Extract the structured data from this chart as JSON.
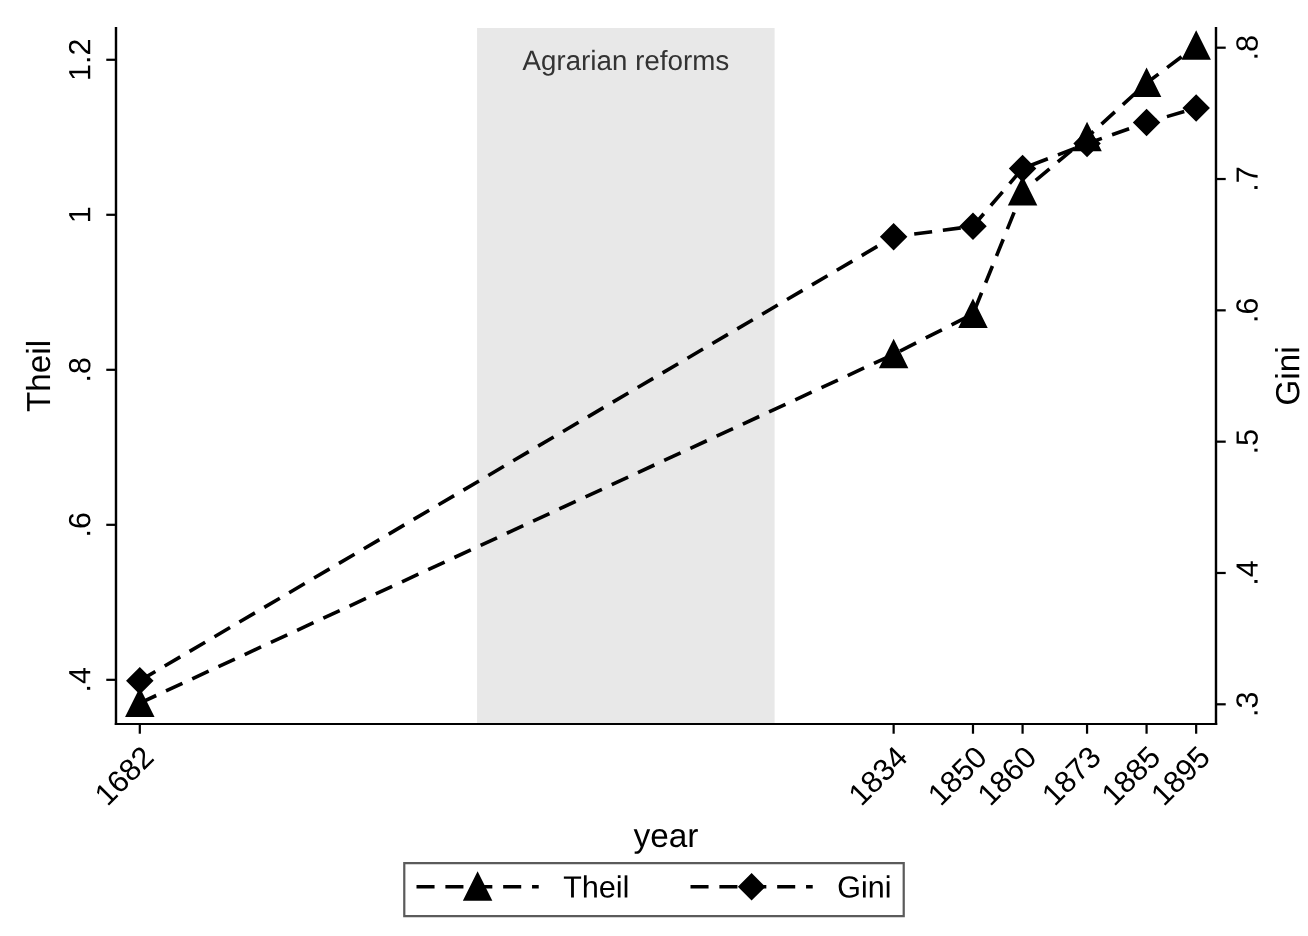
{
  "chart_data": {
    "type": "line",
    "xlabel": "year",
    "ylabel": "Theil",
    "y2label": "Gini",
    "x": [
      1682,
      1834,
      1850,
      1860,
      1873,
      1885,
      1895
    ],
    "series": [
      {
        "name": "Theil",
        "color": "#000000",
        "marker": "triangle",
        "values": [
          0.37,
          0.82,
          0.872,
          1.03,
          1.1,
          1.17,
          1.218
        ]
      },
      {
        "name": "Gini",
        "color": "#000000",
        "marker": "diamond",
        "axis": "y2",
        "values": [
          0.318,
          0.656,
          0.664,
          0.708,
          0.727,
          0.743,
          0.754
        ]
      }
    ],
    "line_style": "dashed",
    "xlim": [
      1677.2,
      1899
    ],
    "xticks": [
      1682,
      1834,
      1850,
      1860,
      1873,
      1885,
      1895
    ],
    "ylim": [
      0.343,
      1.241
    ],
    "yticks": [
      {
        "value": 0.4,
        "label": ".4"
      },
      {
        "value": 0.6,
        "label": ".6"
      },
      {
        "value": 0.8,
        "label": ".8"
      },
      {
        "value": 1,
        "label": "1"
      },
      {
        "value": 1.2,
        "label": "1.2"
      }
    ],
    "y2lim": [
      0.285,
      0.815
    ],
    "y2ticks": [
      {
        "value": 0.3,
        "label": ".3"
      },
      {
        "value": 0.4,
        "label": ".4"
      },
      {
        "value": 0.5,
        "label": ".5"
      },
      {
        "value": 0.6,
        "label": ".6"
      },
      {
        "value": 0.7,
        "label": ".7"
      },
      {
        "value": 0.8,
        "label": ".8"
      }
    ],
    "bands": [
      {
        "axis": "x",
        "from": 1750,
        "to": 1810,
        "label": "Agrarian reforms",
        "color": "#e8e8e8"
      }
    ],
    "grid": false,
    "legend": "bottom"
  }
}
